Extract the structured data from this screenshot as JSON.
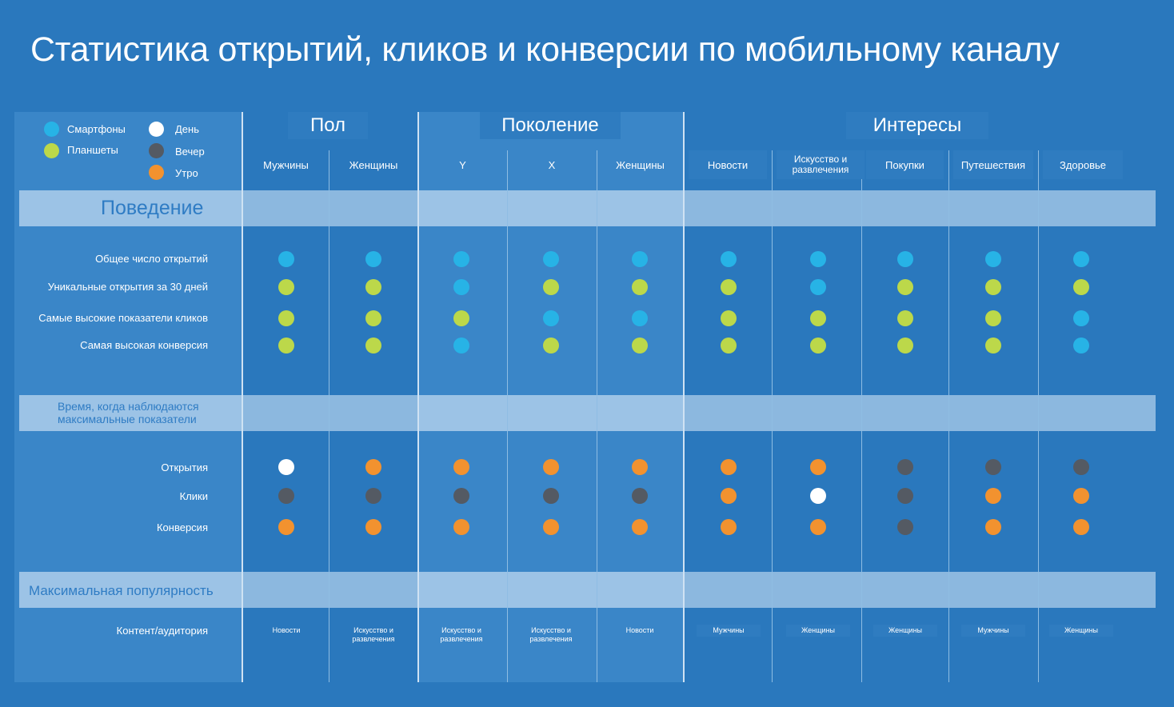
{
  "title": "Статистика открытий, кликов и конверсии по мобильному каналу",
  "colors": {
    "smartphone": "#27b3e6",
    "tablet": "#bcd84a",
    "day": "#ffffff",
    "evening": "#545a63",
    "morning": "#f2922f"
  },
  "legend": [
    {
      "key": "smartphone",
      "label": "Смартфоны"
    },
    {
      "key": "tablet",
      "label": "Планшеты"
    },
    {
      "key": "day",
      "label": "День"
    },
    {
      "key": "evening",
      "label": "Вечер"
    },
    {
      "key": "morning",
      "label": "Утро"
    }
  ],
  "groups": [
    {
      "label": "Пол"
    },
    {
      "label": "Поколение"
    },
    {
      "label": "Интересы"
    }
  ],
  "columns": [
    "Мужчины",
    "Женщины",
    "Y",
    "X",
    "Женщины",
    "Новости",
    "Искусство и развлечения",
    "Покупки",
    "Путешествия",
    "Здоровье"
  ],
  "sections": {
    "behavior": "Поведение",
    "peak_time": "Время, когда наблюдаются максимальные показатели",
    "popularity": "Максимальная популярность"
  },
  "behavior_rows": [
    {
      "label": "Общее число открытий",
      "values": [
        "smartphone",
        "smartphone",
        "smartphone",
        "smartphone",
        "smartphone",
        "smartphone",
        "smartphone",
        "smartphone",
        "smartphone",
        "smartphone"
      ]
    },
    {
      "label": "Уникальные открытия за 30 дней",
      "values": [
        "tablet",
        "tablet",
        "smartphone",
        "tablet",
        "tablet",
        "tablet",
        "smartphone",
        "tablet",
        "tablet",
        "tablet"
      ]
    },
    {
      "label": "Самые высокие показатели кликов",
      "values": [
        "tablet",
        "tablet",
        "tablet",
        "smartphone",
        "smartphone",
        "tablet",
        "tablet",
        "tablet",
        "tablet",
        "smartphone"
      ]
    },
    {
      "label": "Самая высокая конверсия",
      "values": [
        "tablet",
        "tablet",
        "smartphone",
        "tablet",
        "tablet",
        "tablet",
        "tablet",
        "tablet",
        "tablet",
        "smartphone"
      ]
    }
  ],
  "time_rows": [
    {
      "label": "Открытия",
      "values": [
        "day",
        "morning",
        "morning",
        "morning",
        "morning",
        "morning",
        "morning",
        "evening",
        "evening",
        "evening"
      ]
    },
    {
      "label": "Клики",
      "values": [
        "evening",
        "evening",
        "evening",
        "evening",
        "evening",
        "morning",
        "day",
        "evening",
        "morning",
        "morning"
      ]
    },
    {
      "label": "Конверсия",
      "values": [
        "morning",
        "morning",
        "morning",
        "morning",
        "morning",
        "morning",
        "morning",
        "evening",
        "morning",
        "morning"
      ]
    }
  ],
  "popularity_row": {
    "label": "Контент/аудитория",
    "values": [
      "Новости",
      "Искусство и развлечения",
      "Искусство и развлечения",
      "Искусство и развлечения",
      "Новости",
      "Мужчины",
      "Женщины",
      "Женщины",
      "Мужчины",
      "Женщины"
    ]
  }
}
